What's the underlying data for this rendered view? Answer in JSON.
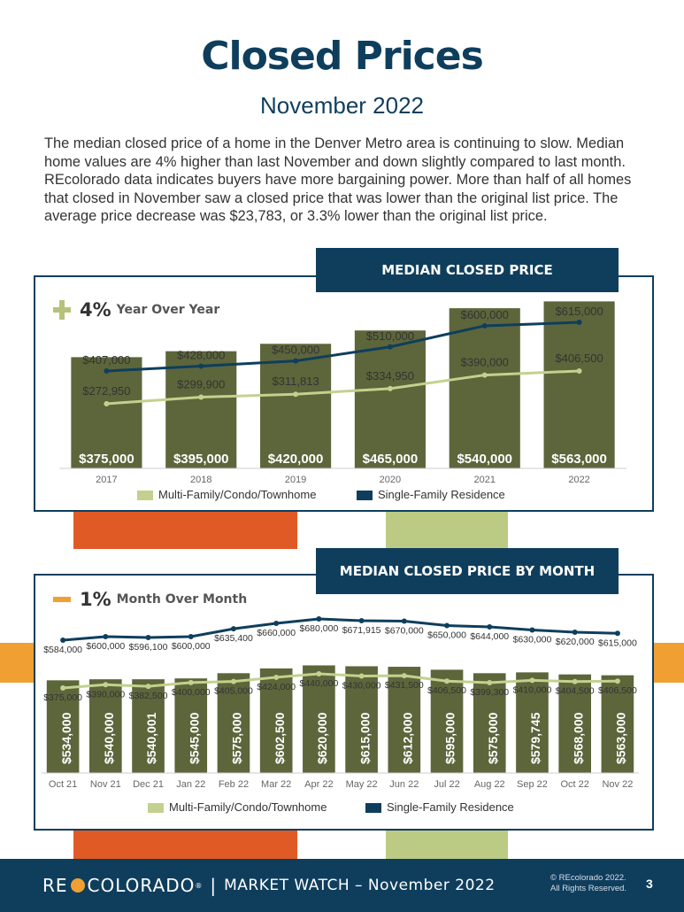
{
  "header": {
    "title": "Closed Prices",
    "subtitle": "November 2022",
    "intro": "The median closed price of a home in the Denver Metro area is continuing to slow. Median home values are 4% higher than last November and down slightly compared to last month. REcolorado data indicates buyers have more bargaining power. More than half of all homes that closed in November saw a closed price that was lower than the original list price. The average price decrease was $23,783, or 3.3% lower than the original list price."
  },
  "section1": {
    "banner": "MEDIAN CLOSED PRICE",
    "change_value": "4%",
    "change_label": "Year Over Year",
    "change_color": "#b5c27a"
  },
  "section2": {
    "banner": "MEDIAN CLOSED PRICE BY MONTH",
    "change_value": "1%",
    "change_label": "Month Over Month",
    "change_color": "#f0a033"
  },
  "colors": {
    "bar": "#5d653b",
    "line_single_family": "#0f3e5d",
    "line_multi_family": "#c3d18e",
    "navy": "#0f3e5d"
  },
  "chart_data": [
    {
      "type": "bar",
      "categories": [
        "2017",
        "2018",
        "2019",
        "2020",
        "2021",
        "2022"
      ],
      "series": [
        {
          "values": [
            375000,
            395000,
            420000,
            465000,
            540000,
            563000
          ],
          "labels": [
            "$375,000",
            "$395,000",
            "$420,000",
            "$465,000",
            "$540,000",
            "$563,000"
          ]
        },
        {
          "name": "Single-Family Residence",
          "type": "line",
          "values": [
            407000,
            428000,
            450000,
            510000,
            600000,
            615000
          ],
          "labels": [
            "$407,000",
            "$428,000",
            "$450,000",
            "$510,000",
            "$600,000",
            "$615,000"
          ]
        },
        {
          "name": "Multi-Family/Condo/Townhome",
          "type": "line",
          "values": [
            272950,
            299900,
            311813,
            334950,
            390000,
            406500
          ],
          "labels": [
            "$272,950",
            "$299,900",
            "$311,813",
            "$334,950",
            "$390,000",
            "$406,500"
          ]
        }
      ],
      "legend": [
        "Multi-Family/Condo/Townhome",
        "Single-Family Residence"
      ],
      "legend_position": "bottom"
    },
    {
      "type": "bar",
      "categories": [
        "Oct 21",
        "Nov 21",
        "Dec 21",
        "Jan 22",
        "Feb 22",
        "Mar 22",
        "Apr 22",
        "May 22",
        "Jun 22",
        "Jul 22",
        "Aug 22",
        "Sep 22",
        "Oct 22",
        "Nov 22"
      ],
      "series": [
        {
          "values": [
            534000,
            540000,
            540001,
            545000,
            575000,
            602500,
            620000,
            615000,
            612000,
            595000,
            575000,
            579745,
            568000,
            563000
          ],
          "labels": [
            "$534,000",
            "$540,000",
            "$540,001",
            "$545,000",
            "$575,000",
            "$602,500",
            "$620,000",
            "$615,000",
            "$612,000",
            "$595,000",
            "$575,000",
            "$579,745",
            "$568,000",
            "$563,000"
          ]
        },
        {
          "name": "Single-Family Residence",
          "type": "line",
          "values": [
            584000,
            600000,
            596100,
            600000,
            635400,
            660000,
            680000,
            671915,
            670000,
            650000,
            644000,
            630000,
            620000,
            615000
          ],
          "labels": [
            "$584,000",
            "$600,000",
            "$596,100",
            "$600,000",
            "$635,400",
            "$660,000",
            "$680,000",
            "$671,915",
            "$670,000",
            "$650,000",
            "$644,000",
            "$630,000",
            "$620,000",
            "$615,000"
          ]
        },
        {
          "name": "Multi-Family/Condo/Townhome",
          "type": "line",
          "values": [
            375000,
            390000,
            382500,
            400000,
            405000,
            424000,
            440000,
            430000,
            431500,
            406500,
            399300,
            410000,
            404500,
            406500
          ],
          "labels": [
            "$375,000",
            "$390,000",
            "$382,500",
            "$400,000",
            "$405,000",
            "$424,000",
            "$440,000",
            "$430,000",
            "$431,500",
            "$406,500",
            "$399,300",
            "$410,000",
            "$404,500",
            "$406,500"
          ]
        }
      ],
      "legend": [
        "Multi-Family/Condo/Townhome",
        "Single-Family Residence"
      ],
      "legend_position": "bottom"
    }
  ],
  "footer": {
    "logo_left": "RE",
    "logo_right": "COLORADO",
    "logo_reg": "®",
    "separator": "|",
    "market_watch": "MARKET WATCH – November 2022",
    "copyright_1": "© REcolorado 2022.",
    "copyright_2": "All Rights Reserved.",
    "page_number": "3"
  }
}
